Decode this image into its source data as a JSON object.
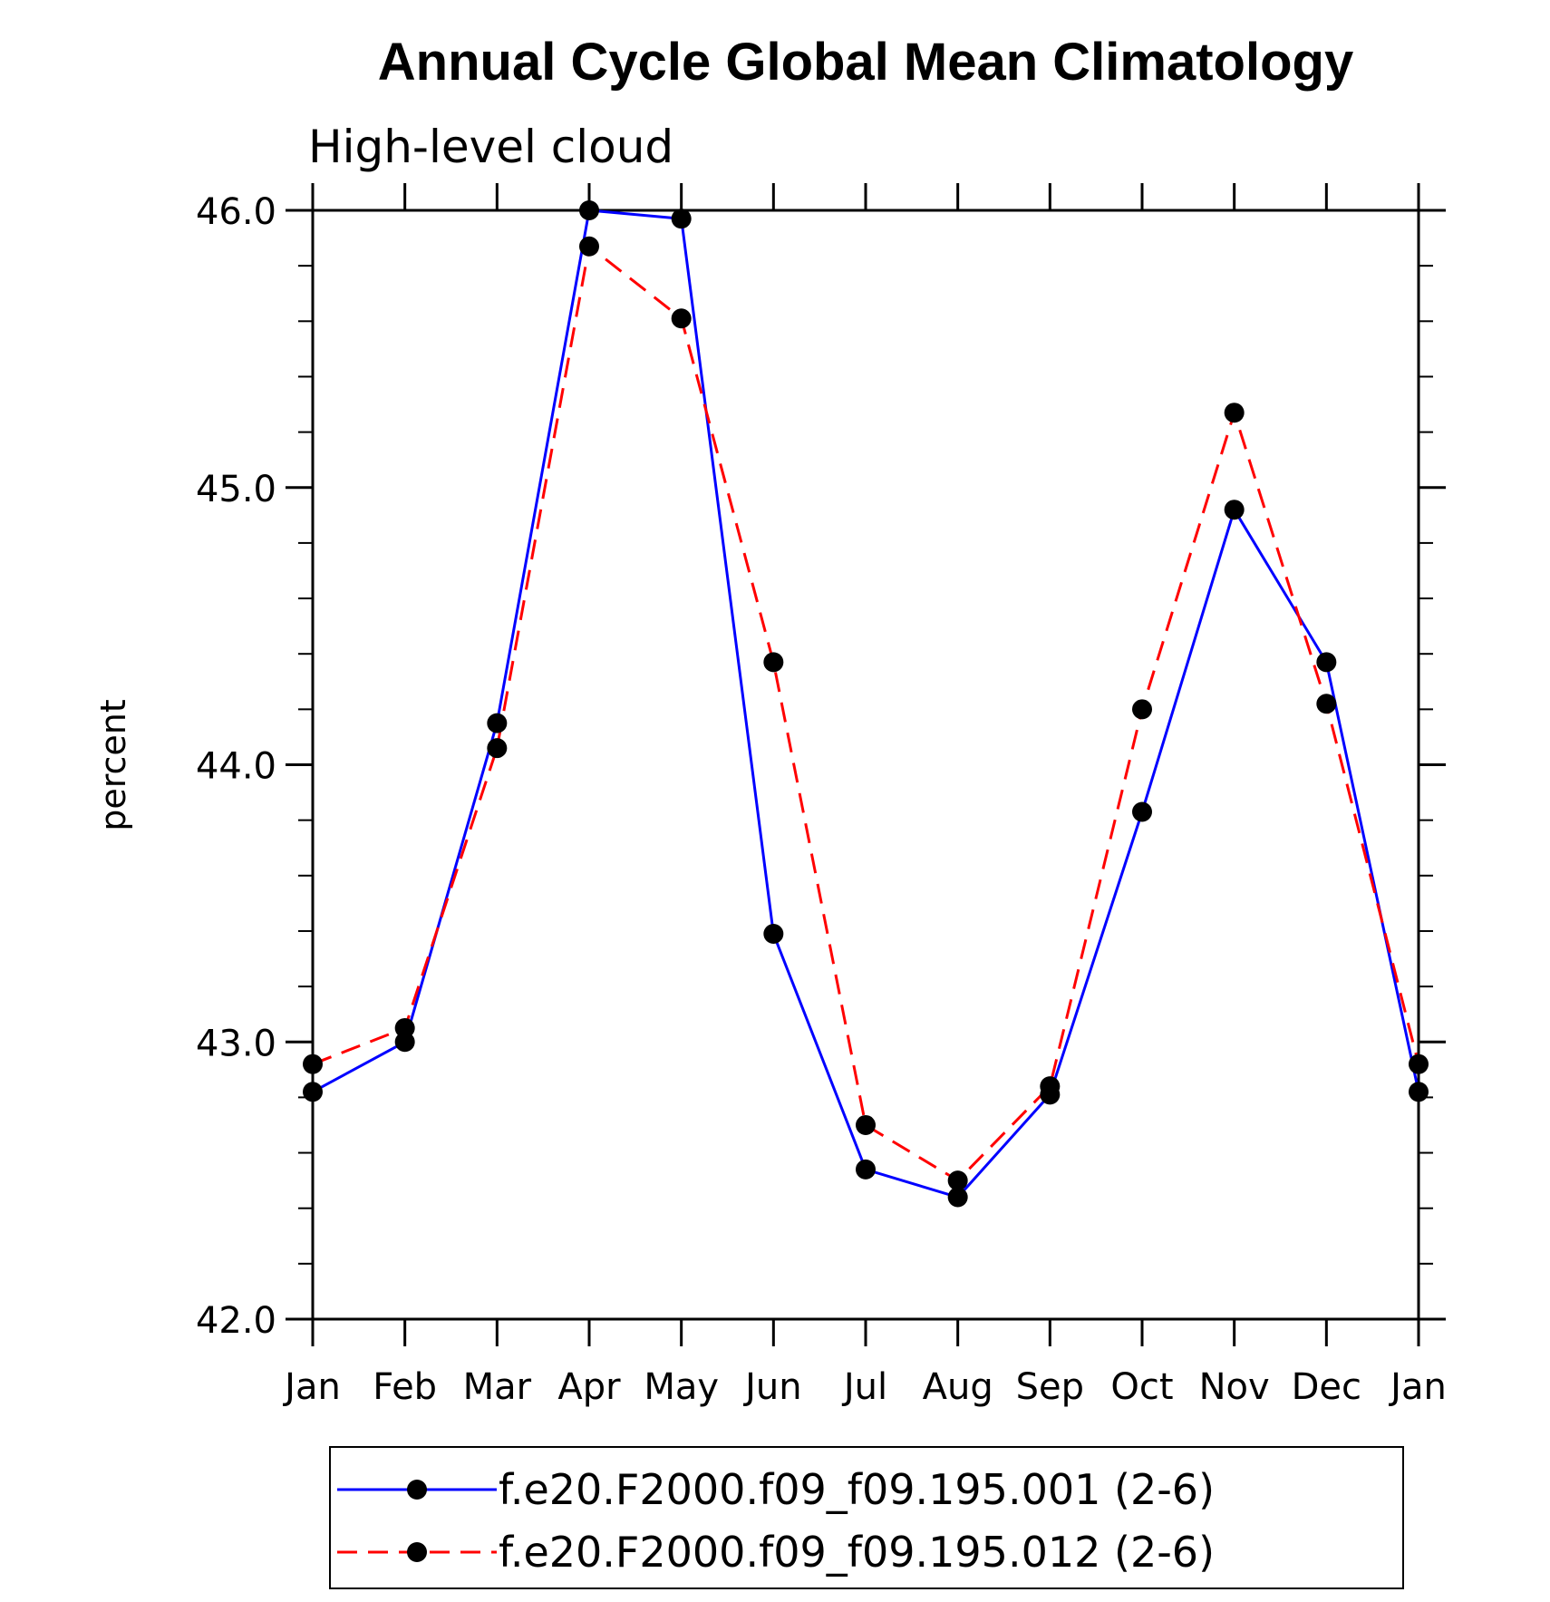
{
  "chart_data": {
    "type": "line",
    "title": "Annual Cycle Global Mean Climatology",
    "subtitle": "High-level cloud",
    "ylabel": "percent",
    "xlabel": "",
    "categories": [
      "Jan",
      "Feb",
      "Mar",
      "Apr",
      "May",
      "Jun",
      "Jul",
      "Aug",
      "Sep",
      "Oct",
      "Nov",
      "Dec",
      "Jan"
    ],
    "ylim": [
      42.0,
      46.0
    ],
    "yticks": [
      "42.0",
      "43.0",
      "44.0",
      "45.0",
      "46.0"
    ],
    "yminor_step": 0.2,
    "grid": false,
    "legend_position": "bottom",
    "series": [
      {
        "name": "f.e20.F2000.f09_f09.195.001 (2-6)",
        "color": "#0000ff",
        "dash": "solid",
        "values": [
          42.82,
          43.0,
          44.15,
          46.0,
          45.97,
          43.39,
          42.54,
          42.44,
          42.81,
          43.83,
          44.92,
          44.37,
          42.82
        ]
      },
      {
        "name": "f.e20.F2000.f09_f09.195.012 (2-6)",
        "color": "#ff0000",
        "dash": "dashed",
        "values": [
          42.92,
          43.05,
          44.06,
          45.87,
          45.61,
          44.37,
          42.7,
          42.5,
          42.84,
          44.2,
          45.27,
          44.22,
          42.92
        ]
      }
    ]
  }
}
